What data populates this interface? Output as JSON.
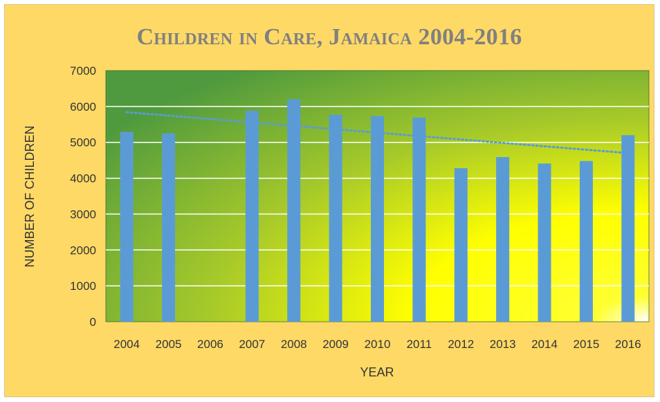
{
  "chart_data": {
    "type": "bar",
    "title": "Children in Care, Jamaica 2004-2016",
    "xlabel": "YEAR",
    "ylabel": "NUMBER OF CHILDREN",
    "categories": [
      "2004",
      "2005",
      "2006",
      "2007",
      "2008",
      "2009",
      "2010",
      "2011",
      "2012",
      "2013",
      "2014",
      "2015",
      "2016"
    ],
    "values": [
      5290,
      5250,
      0,
      5880,
      6200,
      5770,
      5730,
      5690,
      4280,
      4590,
      4410,
      4480,
      5200
    ],
    "ylim": [
      0,
      7000
    ],
    "yticks": [
      0,
      1000,
      2000,
      3000,
      4000,
      5000,
      6000,
      7000
    ],
    "grid": true,
    "legend": "none",
    "trendline": {
      "type": "linear",
      "style": "dotted",
      "start": 5840,
      "end": 4700
    },
    "colors": {
      "bar": "#5b9bd5",
      "trendline": "#5b9bd5",
      "frame_background": "#ffd966",
      "plot_gradient_dark": "#4e9a3c",
      "plot_gradient_light": "#ffff00",
      "title": "#808080"
    }
  }
}
